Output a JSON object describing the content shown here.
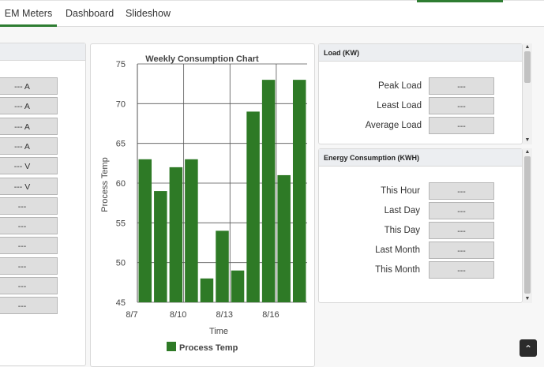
{
  "tabs": [
    {
      "label": "EM Meters",
      "active": true
    },
    {
      "label": "Dashboard",
      "active": false
    },
    {
      "label": "Slideshow",
      "active": false
    }
  ],
  "left_panel": {
    "values": [
      "--- A",
      "--- A",
      "--- A",
      "--- A",
      "--- V",
      "--- V",
      "---",
      "---",
      "---",
      "---",
      "---",
      "---"
    ]
  },
  "load_panel": {
    "title": "Load (KW)",
    "rows": [
      {
        "label": "Peak Load",
        "value": "---"
      },
      {
        "label": "Least Load",
        "value": "---"
      },
      {
        "label": "Average Load",
        "value": "---"
      }
    ]
  },
  "energy_panel": {
    "title": "Energy Consumption (KWH)",
    "rows": [
      {
        "label": "This Hour",
        "value": "---"
      },
      {
        "label": "Last Day",
        "value": "---"
      },
      {
        "label": "This Day",
        "value": "---"
      },
      {
        "label": "Last Month",
        "value": "---"
      },
      {
        "label": "This Month",
        "value": "---"
      }
    ]
  },
  "colors": {
    "accent": "#2e7d32",
    "bar": "#2e7a26"
  },
  "chart_data": {
    "type": "bar",
    "title": "Weekly Consumption Chart",
    "xlabel": "Time",
    "ylabel": "Process Temp",
    "x_ticks": [
      "8/7",
      "8/10",
      "8/13",
      "8/16"
    ],
    "y_ticks": [
      45,
      50,
      55,
      60,
      65,
      70,
      75
    ],
    "ylim": [
      45,
      75
    ],
    "legend": "bottom",
    "grid": true,
    "series": [
      {
        "name": "Process Temp",
        "values": [
          63,
          59,
          62,
          63,
          48,
          54,
          49,
          69,
          73,
          61,
          73
        ]
      }
    ]
  }
}
